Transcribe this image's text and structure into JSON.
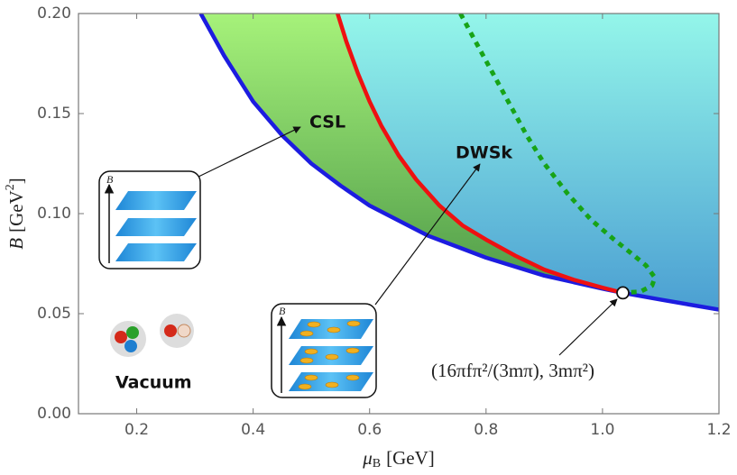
{
  "chart_data": {
    "type": "line",
    "xlabel": {
      "symbol": "μ",
      "subscript": "B",
      "unit": "[GeV]"
    },
    "ylabel": {
      "symbol": "B",
      "unit": "[GeV",
      "superscript": "2",
      "close": "]"
    },
    "xlim": [
      0.1,
      1.2
    ],
    "ylim": [
      0,
      0.2
    ],
    "xticks": [
      0.2,
      0.4,
      0.6,
      0.8,
      {
        "value": 1,
        "label": "1.0"
      },
      {
        "value": 1.2,
        "label": "1.2"
      }
    ],
    "yticks": [
      {
        "value": 0,
        "label": "0.00"
      },
      0.05,
      {
        "value": 0.1,
        "label": "0.10"
      },
      0.15,
      {
        "value": 0.2,
        "label": "0.20"
      }
    ],
    "series": [
      {
        "color": "#1c1ce0",
        "x": [
          0.31,
          0.35,
          0.4,
          0.45,
          0.5,
          0.55,
          0.6,
          0.7,
          0.8,
          0.9,
          1.0,
          1.035,
          1.1,
          1.2
        ],
        "values": [
          0.2,
          0.179,
          0.156,
          0.139,
          0.125,
          0.114,
          0.104,
          0.089,
          0.078,
          0.069,
          0.0625,
          0.0604,
          0.057,
          0.052
        ]
      },
      {
        "color": "#ee1111",
        "x": [
          0.545,
          0.56,
          0.58,
          0.6,
          0.62,
          0.65,
          0.68,
          0.72,
          0.76,
          0.8,
          0.85,
          0.9,
          0.95,
          1.0,
          1.035
        ],
        "values": [
          0.2,
          0.186,
          0.17,
          0.156,
          0.144,
          0.129,
          0.117,
          0.104,
          0.094,
          0.087,
          0.079,
          0.072,
          0.067,
          0.063,
          0.0604
        ]
      },
      {
        "color": "#17a317",
        "x": [
          0.756,
          0.78,
          0.81,
          0.84,
          0.87,
          0.9,
          0.94,
          0.98,
          1.02,
          1.05,
          1.075,
          1.09,
          1.085,
          1.065,
          1.035
        ],
        "values": [
          0.2,
          0.187,
          0.171,
          0.155,
          0.139,
          0.125,
          0.11,
          0.097,
          0.087,
          0.08,
          0.074,
          0.068,
          0.064,
          0.061,
          0.0604
        ]
      }
    ],
    "critical_point": {
      "x": 1.035,
      "y": 0.0604,
      "label": "(16πfπ²/(3mπ), 3mπ²)"
    },
    "annotations": [
      "CSL",
      "DWSk",
      "Vacuum"
    ],
    "inset_axis_label": "B"
  }
}
